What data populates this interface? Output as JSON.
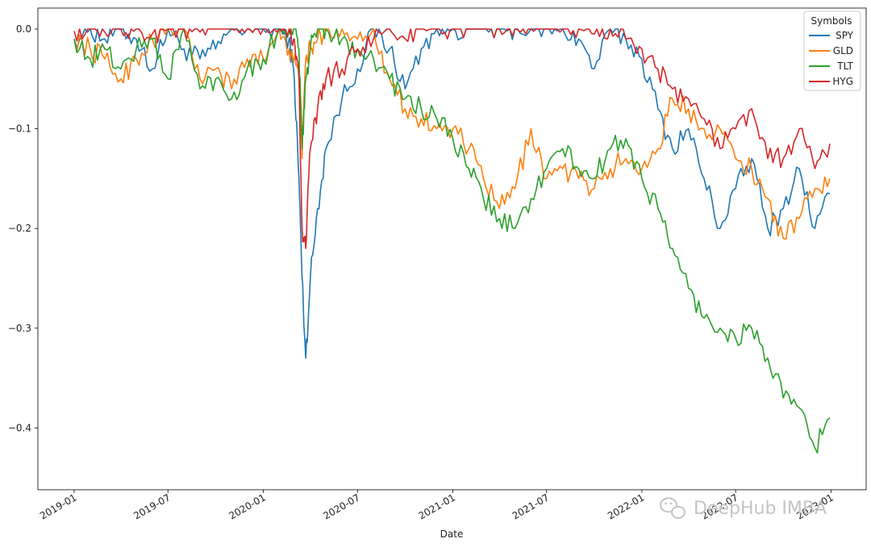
{
  "chart_data": {
    "type": "line",
    "xlabel": "Date",
    "ylabel": "",
    "x_tick_labels": [
      "2019-01",
      "2019-07",
      "2020-01",
      "2020-07",
      "2021-01",
      "2021-07",
      "2022-01",
      "2022-07",
      "2023-01"
    ],
    "y_ticks": [
      0.0,
      -0.1,
      -0.2,
      -0.3,
      -0.4
    ],
    "y_tick_labels": [
      "0.0",
      "−0.1",
      "−0.2",
      "−0.3",
      "−0.4"
    ],
    "xlim": [
      "2018-10-23",
      "2023-03-10"
    ],
    "ylim": [
      -0.462,
      0.021
    ],
    "grid": false,
    "legend": {
      "title": "Symbols",
      "placement": "top-right"
    },
    "dates": [
      "2019-01-01",
      "2019-02-01",
      "2019-03-01",
      "2019-04-01",
      "2019-05-01",
      "2019-06-01",
      "2019-07-01",
      "2019-08-01",
      "2019-09-01",
      "2019-10-01",
      "2019-11-01",
      "2019-12-01",
      "2020-01-01",
      "2020-02-01",
      "2020-02-20",
      "2020-03-01",
      "2020-03-10",
      "2020-03-16",
      "2020-03-23",
      "2020-04-01",
      "2020-04-15",
      "2020-05-01",
      "2020-06-01",
      "2020-07-01",
      "2020-08-01",
      "2020-09-01",
      "2020-10-01",
      "2020-11-01",
      "2020-12-01",
      "2021-01-01",
      "2021-02-01",
      "2021-03-01",
      "2021-04-01",
      "2021-05-01",
      "2021-06-01",
      "2021-07-01",
      "2021-08-01",
      "2021-09-01",
      "2021-10-01",
      "2021-11-01",
      "2021-12-01",
      "2022-01-01",
      "2022-02-01",
      "2022-03-01",
      "2022-04-01",
      "2022-05-01",
      "2022-06-01",
      "2022-07-01",
      "2022-08-01",
      "2022-09-01",
      "2022-10-01",
      "2022-11-01",
      "2022-12-01",
      "2022-12-30"
    ],
    "series": [
      {
        "name": "SPY",
        "color": "#1f77b4",
        "values": [
          -0.01,
          0,
          -0.01,
          0,
          -0.01,
          -0.04,
          0,
          -0.02,
          -0.03,
          -0.02,
          0,
          0,
          0,
          0,
          -0.01,
          -0.05,
          -0.15,
          -0.25,
          -0.33,
          -0.25,
          -0.18,
          -0.12,
          -0.07,
          -0.04,
          0,
          -0.02,
          -0.06,
          -0.02,
          0,
          0,
          0,
          0,
          0,
          0,
          0,
          0,
          0,
          -0.01,
          -0.04,
          0,
          -0.01,
          -0.03,
          -0.08,
          -0.12,
          -0.1,
          -0.15,
          -0.2,
          -0.16,
          -0.13,
          -0.2,
          -0.18,
          -0.14,
          -0.2,
          -0.165
        ]
      },
      {
        "name": "GLD",
        "color": "#ff7f0e",
        "values": [
          -0.01,
          -0.02,
          -0.03,
          -0.05,
          -0.03,
          -0.01,
          0,
          0,
          -0.05,
          -0.04,
          -0.06,
          -0.03,
          -0.03,
          0,
          -0.02,
          -0.03,
          -0.05,
          -0.13,
          -0.03,
          -0.02,
          -0.01,
          0,
          0,
          -0.01,
          0,
          -0.05,
          -0.08,
          -0.09,
          -0.1,
          -0.1,
          -0.12,
          -0.15,
          -0.18,
          -0.16,
          -0.1,
          -0.15,
          -0.14,
          -0.15,
          -0.16,
          -0.14,
          -0.13,
          -0.14,
          -0.12,
          -0.07,
          -0.08,
          -0.1,
          -0.1,
          -0.13,
          -0.14,
          -0.17,
          -0.21,
          -0.19,
          -0.16,
          -0.15
        ]
      },
      {
        "name": "TLT",
        "color": "#2ca02c",
        "values": [
          -0.01,
          -0.03,
          -0.02,
          -0.04,
          -0.02,
          -0.01,
          -0.05,
          0,
          -0.06,
          -0.05,
          -0.07,
          -0.04,
          -0.03,
          0,
          0,
          0,
          -0.02,
          -0.12,
          -0.05,
          -0.02,
          0,
          0,
          -0.01,
          -0.02,
          -0.03,
          -0.05,
          -0.07,
          -0.08,
          -0.09,
          -0.11,
          -0.14,
          -0.17,
          -0.19,
          -0.2,
          -0.17,
          -0.14,
          -0.12,
          -0.14,
          -0.15,
          -0.12,
          -0.11,
          -0.15,
          -0.18,
          -0.22,
          -0.26,
          -0.29,
          -0.3,
          -0.31,
          -0.3,
          -0.33,
          -0.37,
          -0.38,
          -0.42,
          -0.39
        ]
      },
      {
        "name": "HYG",
        "color": "#d62728",
        "values": [
          -0.002,
          0,
          -0.003,
          0,
          0,
          -0.005,
          0,
          0,
          -0.003,
          0,
          0,
          0,
          0,
          0,
          0,
          -0.01,
          -0.05,
          -0.2,
          -0.22,
          -0.12,
          -0.08,
          -0.05,
          -0.04,
          -0.02,
          -0.01,
          0,
          -0.01,
          0,
          0,
          0,
          0,
          0,
          0,
          0,
          0,
          0,
          0,
          0,
          -0.005,
          0,
          -0.01,
          -0.02,
          -0.04,
          -0.06,
          -0.07,
          -0.09,
          -0.12,
          -0.1,
          -0.08,
          -0.13,
          -0.13,
          -0.1,
          -0.14,
          -0.115
        ]
      }
    ]
  },
  "watermark": {
    "text": "DeepHub IMBA"
  }
}
